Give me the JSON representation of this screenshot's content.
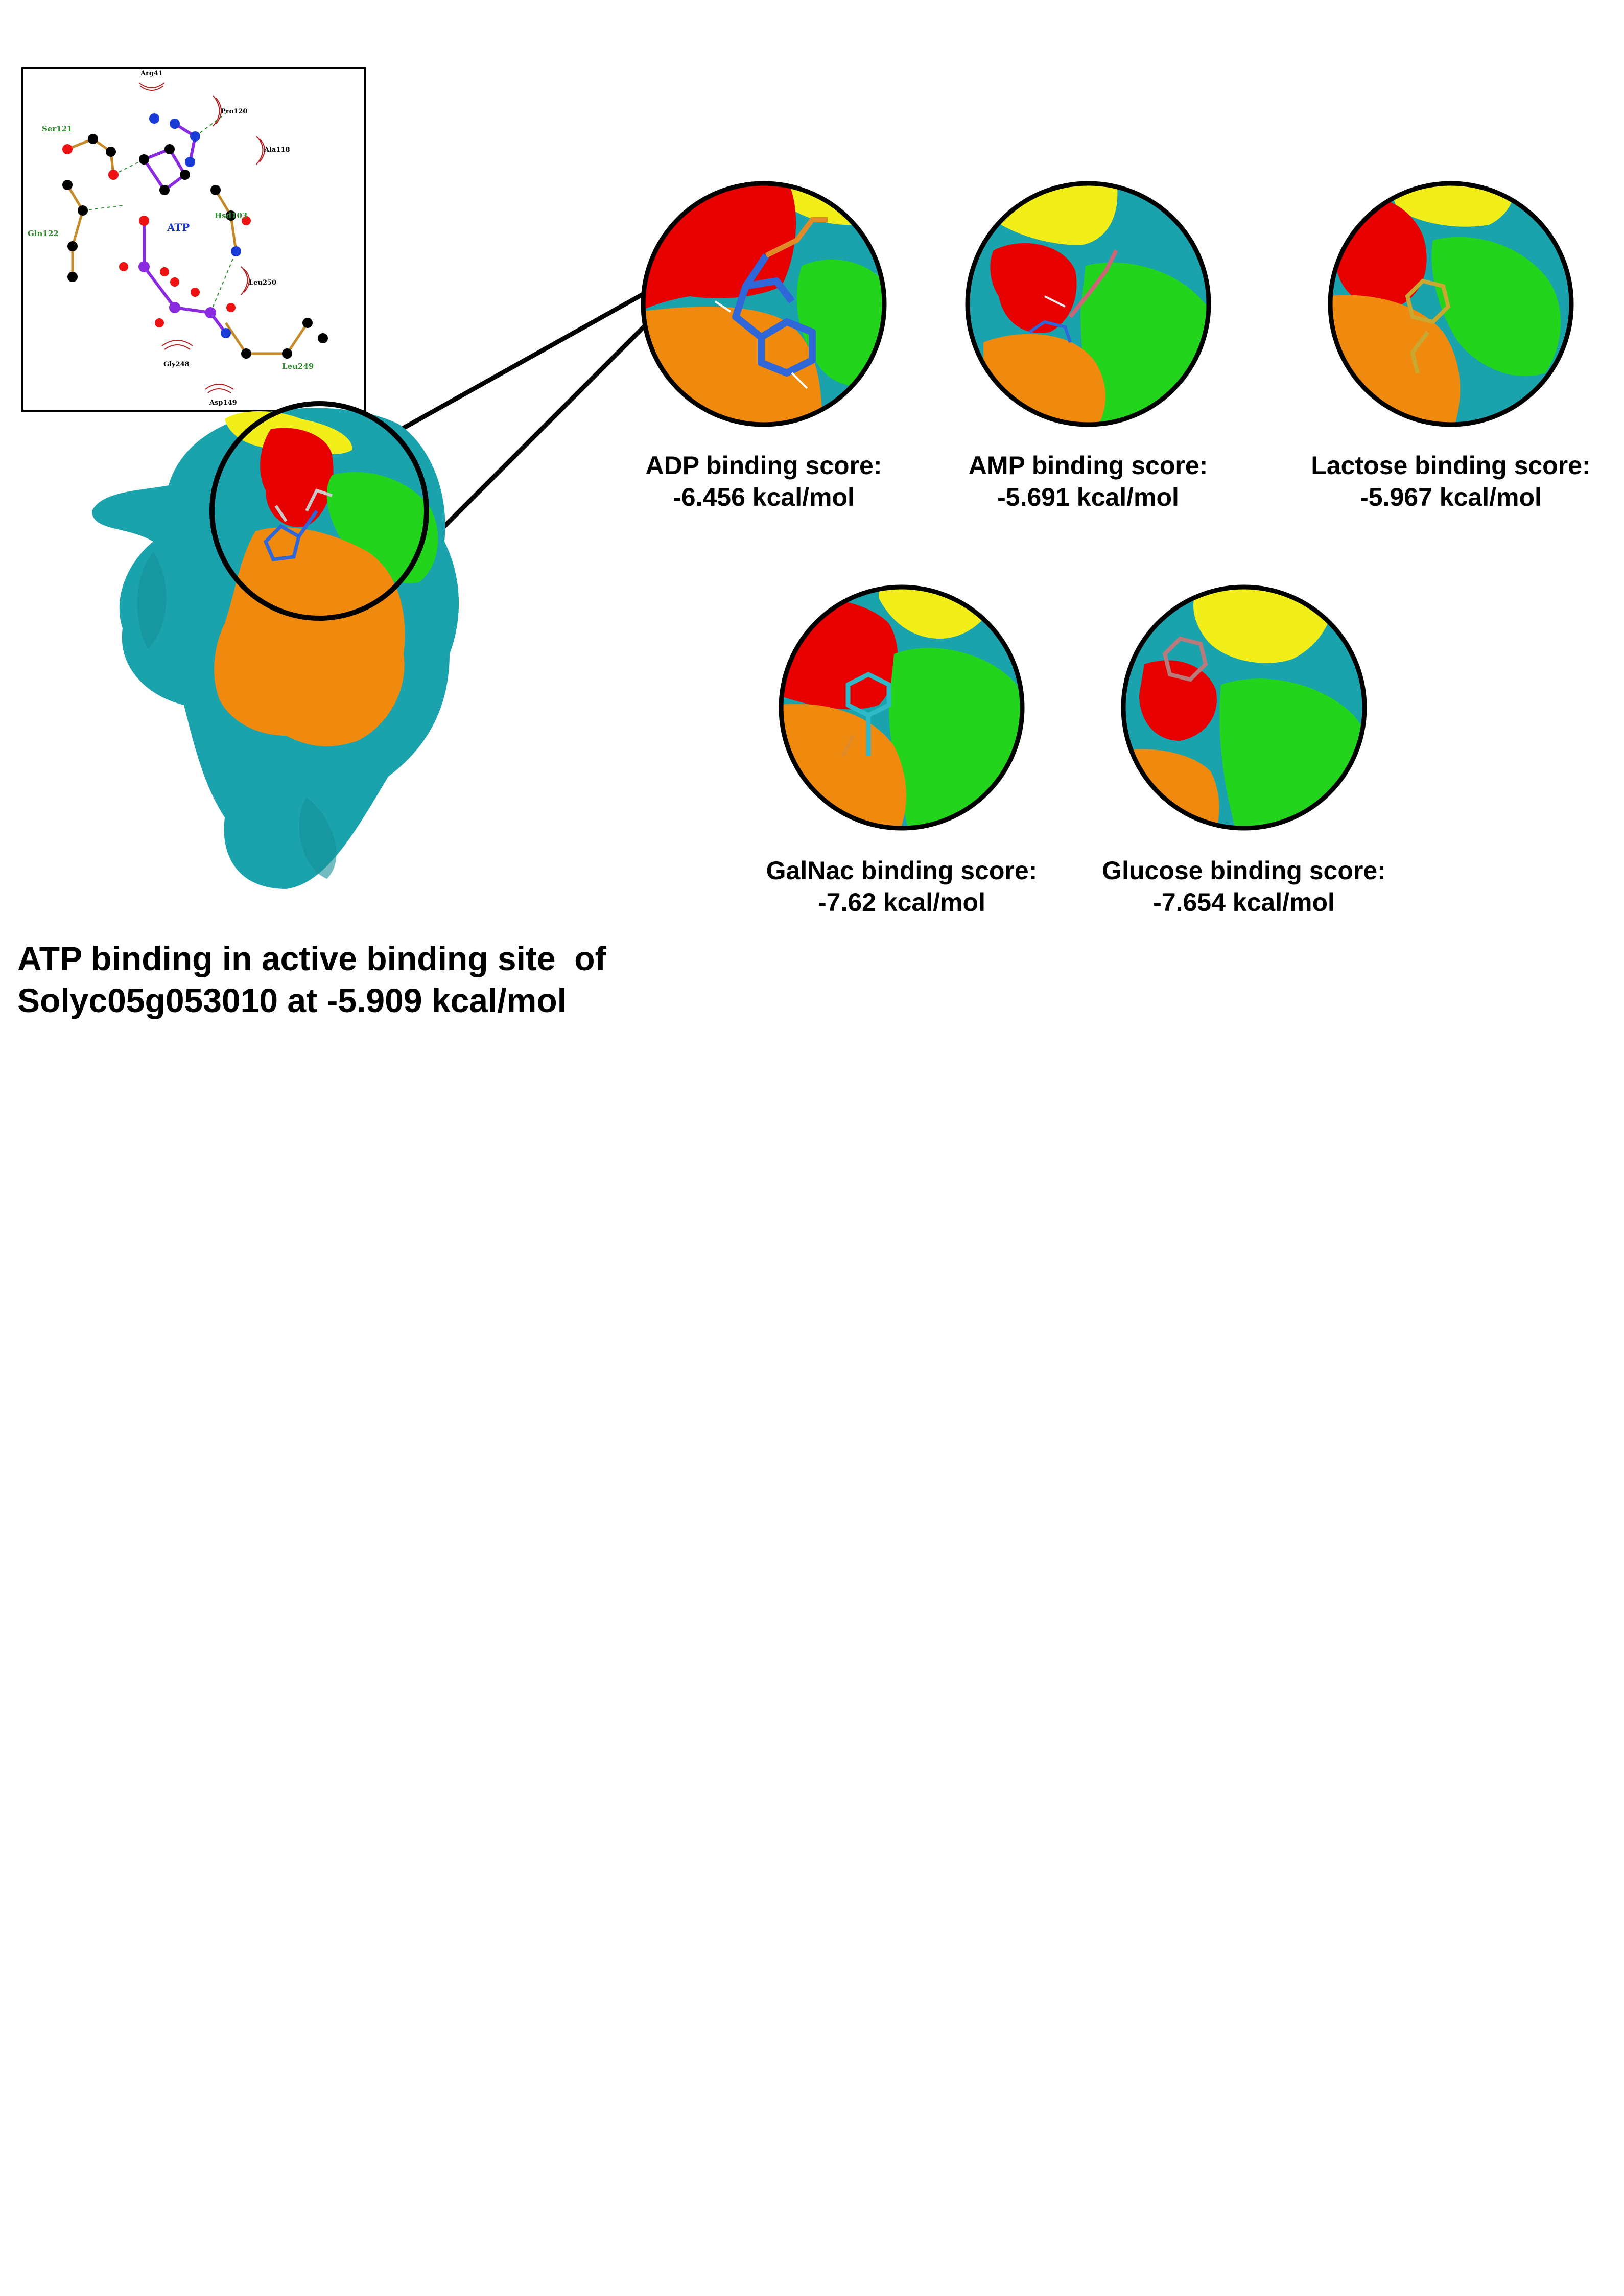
{
  "interaction_diagram": {
    "ligand_label": "ATP",
    "hbond_residues": [
      "Ser121",
      "Gln122",
      "Hsd103",
      "Leu249"
    ],
    "hydrophobic_residues": [
      "Arg41",
      "Pro120",
      "Ala118",
      "Leu250",
      "Gly248",
      "Asp149"
    ]
  },
  "panels": [
    {
      "id": "adp",
      "line1": "ADP binding score:",
      "line2": "-6.456 kcal/mol"
    },
    {
      "id": "amp",
      "line1": "AMP binding score:",
      "line2": "-5.691 kcal/mol"
    },
    {
      "id": "lactose",
      "line1": "Lactose binding score:",
      "line2": "-5.967 kcal/mol"
    },
    {
      "id": "galnac",
      "line1": "GalNac binding score:",
      "line2": "-7.62 kcal/mol"
    },
    {
      "id": "glucose",
      "line1": "Glucose binding score:",
      "line2": "-7.654 kcal/mol"
    }
  ],
  "main_caption": {
    "line1": "ATP binding in active binding site  of",
    "line2": "Solyc05g053010 at -5.909 kcal/mol"
  },
  "colors": {
    "protein": "#1aa3ad",
    "site_red": "#e60000",
    "site_yellow": "#f2ee1a",
    "site_green": "#22d41c",
    "site_orange": "#f08a0e",
    "ligand_blue": "#2f66d8",
    "hbond_label": "#2e8b2e",
    "ligand_bond": "#8a2be2"
  }
}
